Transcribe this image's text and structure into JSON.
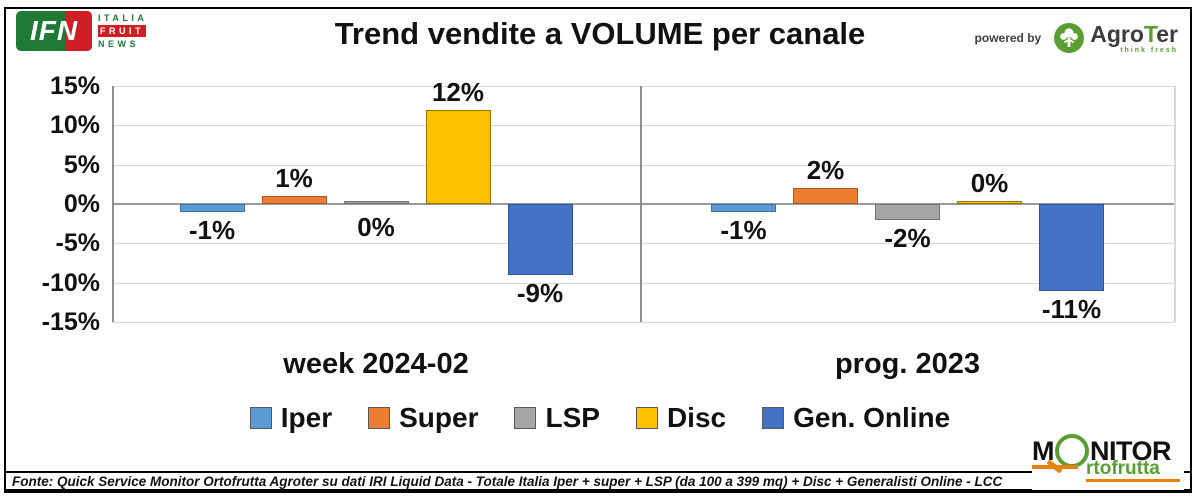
{
  "header": {
    "title": "Trend vendite a VOLUME per canale",
    "powered_by": "powered by",
    "ifn_logo": {
      "acronym": "IFN",
      "word1": "ITALIA",
      "word2": "FRUIT",
      "word3": "NEWS"
    },
    "agroter_logo": {
      "name_pre": "Agro",
      "name_t": "T",
      "name_post": "er",
      "tagline": "think fresh"
    }
  },
  "chart_data": {
    "type": "bar",
    "title": "Trend vendite a VOLUME per canale",
    "categories": [
      "week 2024-02",
      "prog. 2023"
    ],
    "series": [
      {
        "name": "Iper",
        "color": "#5B9BD5",
        "border": "#41719C",
        "values": [
          -1,
          -1
        ],
        "labels": [
          "-1%",
          "-1%"
        ]
      },
      {
        "name": "Super",
        "color": "#ED7D31",
        "border": "#AE5A21",
        "values": [
          1,
          2
        ],
        "labels": [
          "1%",
          "2%"
        ]
      },
      {
        "name": "LSP",
        "color": "#A5A5A5",
        "border": "#747474",
        "values": [
          0,
          -2
        ],
        "labels": [
          "0%",
          "-2%"
        ],
        "zero_label_side": [
          "below",
          null
        ]
      },
      {
        "name": "Disc",
        "color": "#FFC000",
        "border": "#997300",
        "values": [
          12,
          0
        ],
        "labels": [
          "12%",
          "0%"
        ],
        "zero_label_side": [
          null,
          "above"
        ]
      },
      {
        "name": "Gen. Online",
        "color": "#4472C4",
        "border": "#2F5597",
        "values": [
          -9,
          -11
        ],
        "labels": [
          "-9%",
          "-11%"
        ]
      }
    ],
    "y_ticks": [
      "15%",
      "10%",
      "5%",
      "0%",
      "-5%",
      "-10%",
      "-15%"
    ],
    "ylim": [
      -15,
      15
    ],
    "grid": true,
    "legend_position": "bottom"
  },
  "footer": {
    "source": "Fonte: Quick Service Monitor Ortofrutta Agroter su dati IRI Liquid Data - Totale Italia Iper + super + LSP (da 100 a 399 mq) + Disc + Generalisti Online - LCC"
  },
  "monitor_logo": {
    "part1": "M",
    "part2": "NITOR",
    "part3": "rtofrutta"
  }
}
